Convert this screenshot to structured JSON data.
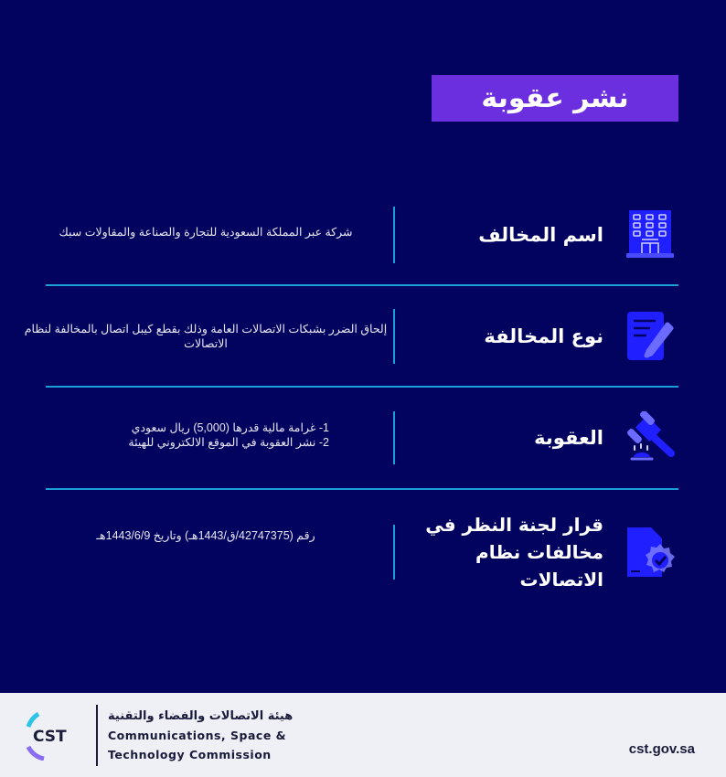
{
  "title": "نشر عقوبة",
  "rows": [
    {
      "icon": "building-icon",
      "label": "اسم المخالف",
      "desc": "شركة عبر المملكة السعودية للتجارة والصناعة والمقاولات سبك"
    },
    {
      "icon": "document-edit-icon",
      "label": "نوع المخالفة",
      "desc": "إلحاق الضرر بشبكات الاتصالات العامة وذلك بقطع كيبل اتصال بالمخالفة لنظام الاتصالات"
    },
    {
      "icon": "gavel-icon",
      "label": "العقوبة",
      "desc_lines": [
        "1- غرامة مالية قدرها (5,000) ريال سعودي",
        "2- نشر العقوبة في الموقع الالكتروني للهيئة"
      ]
    },
    {
      "icon": "approved-document-icon",
      "label": "قرار لجنة النظر في مخالفات نظام الاتصالات",
      "desc": "رقم (42747375/ق/1443هـ) وتاريخ 1443/6/9هـ"
    }
  ],
  "footer": {
    "logo_text": "CST",
    "org_ar": "هيئة الاتصالات والفضاء والتقنية",
    "org_en_1": "Communications, Space &",
    "org_en_2": "Technology Commission",
    "url": "cst.gov.sa"
  },
  "colors": {
    "background": "#02025f",
    "title_band": "#6b2fe0",
    "divider": "#1a9fd8",
    "icon": "#1f1fff"
  }
}
